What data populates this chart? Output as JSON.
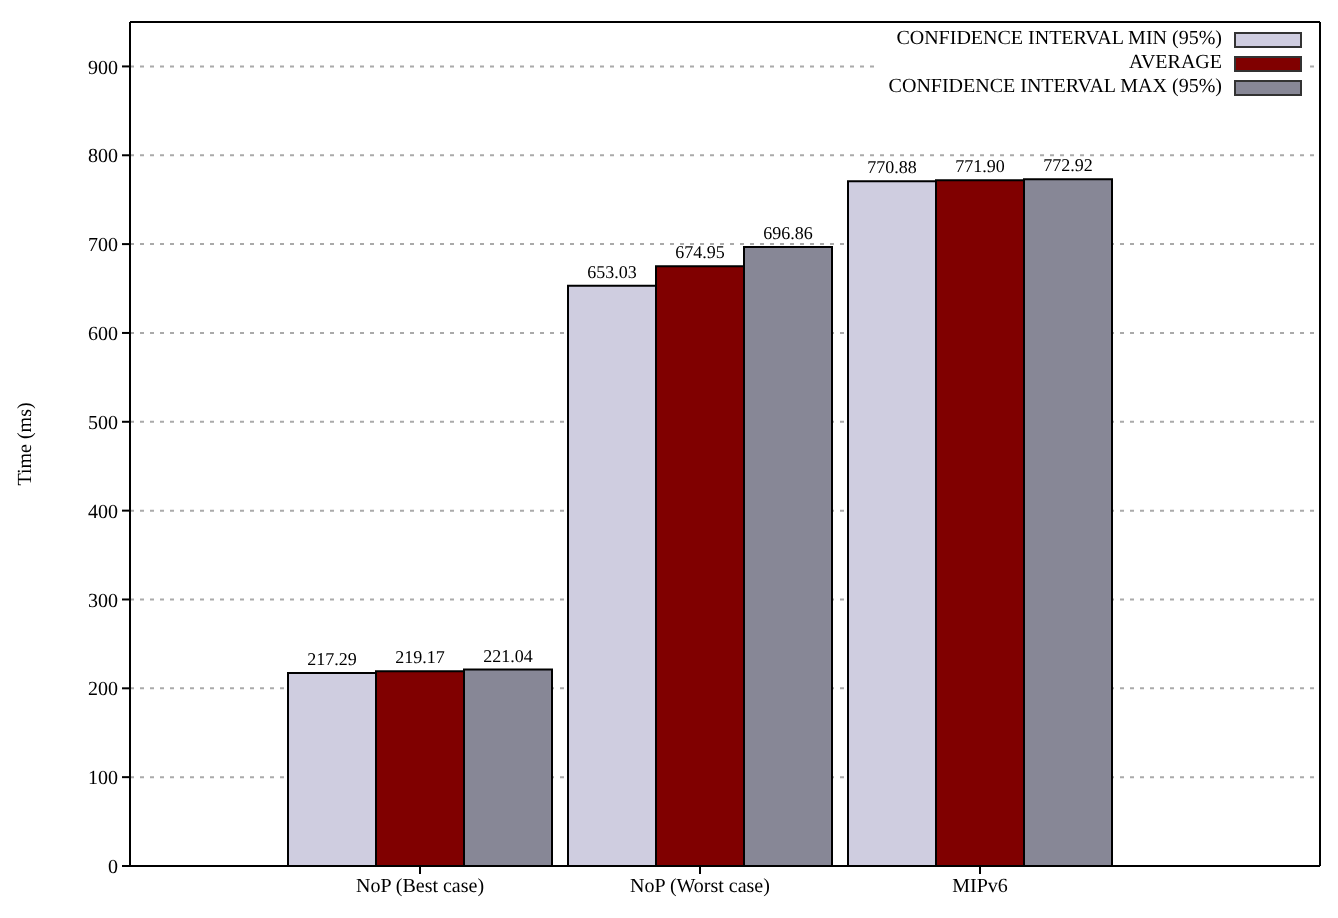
{
  "chart_data": {
    "type": "bar",
    "ylabel": "Time (ms)",
    "categories": [
      "NoP (Best case)",
      "NoP (Worst case)",
      "MIPv6"
    ],
    "series": [
      {
        "name": "CONFIDENCE INTERVAL MIN (95%)",
        "color": "#cfcde0",
        "values": [
          217.29,
          653.03,
          770.88
        ],
        "value_labels": [
          "217.29",
          "653.03",
          "770.88"
        ]
      },
      {
        "name": "AVERAGE",
        "color": "#800000",
        "values": [
          219.17,
          674.95,
          771.9
        ],
        "value_labels": [
          "219.17",
          "674.95",
          "771.90"
        ]
      },
      {
        "name": "CONFIDENCE INTERVAL MAX (95%)",
        "color": "#878796",
        "values": [
          221.04,
          696.86,
          772.92
        ],
        "value_labels": [
          "221.04",
          "696.86",
          "772.92"
        ]
      }
    ],
    "ylim": [
      0,
      950
    ],
    "yticks": [
      0,
      100,
      200,
      300,
      400,
      500,
      600,
      700,
      800,
      900
    ],
    "grid": "y",
    "legend": "top right"
  }
}
